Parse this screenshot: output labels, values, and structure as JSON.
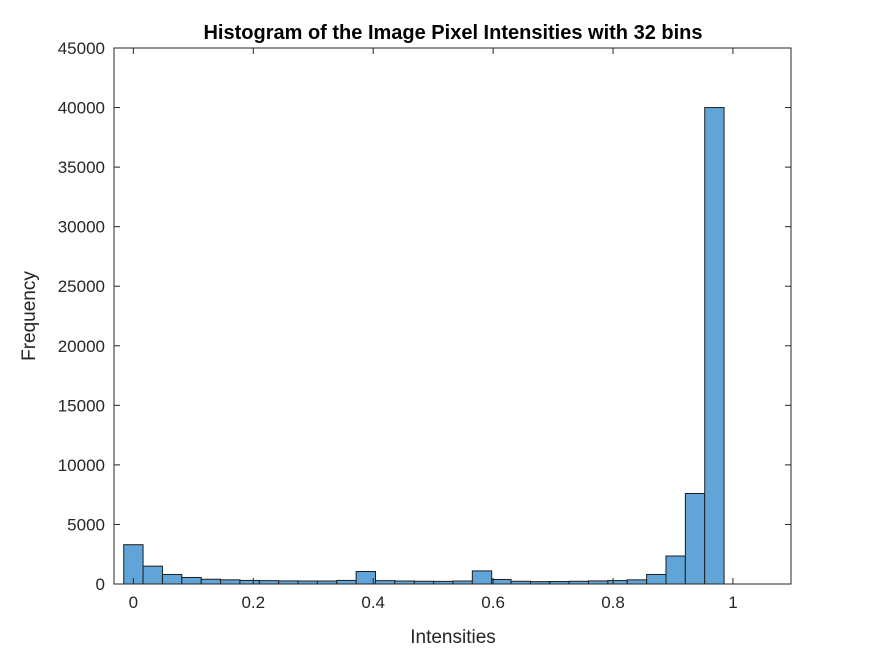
{
  "chart_data": {
    "type": "bar",
    "title": "Histogram of the Image Pixel Intensities with 32 bins",
    "xlabel": "Intensities",
    "ylabel": "Frequency",
    "xlim": [
      -0.0323,
      1.0968
    ],
    "ylim": [
      0,
      45000
    ],
    "xticks": [
      0,
      0.2,
      0.4,
      0.6,
      0.8,
      1
    ],
    "xtick_labels": [
      "0",
      "0.2",
      "0.4",
      "0.6",
      "0.8",
      "1"
    ],
    "yticks": [
      0,
      5000,
      10000,
      15000,
      20000,
      25000,
      30000,
      35000,
      40000,
      45000
    ],
    "ytick_labels": [
      "0",
      "5000",
      "10000",
      "15000",
      "20000",
      "25000",
      "30000",
      "35000",
      "40000",
      "45000"
    ],
    "bins": 32,
    "bin_edges_start": -0.0161,
    "bin_width": 0.0323,
    "values": [
      3300,
      1500,
      800,
      550,
      400,
      350,
      300,
      280,
      260,
      250,
      250,
      300,
      1050,
      280,
      250,
      230,
      220,
      250,
      1100,
      380,
      230,
      200,
      210,
      230,
      260,
      290,
      350,
      800,
      2350,
      7600,
      40000,
      0
    ],
    "bar_color": "#61A5D8",
    "edge_color": "#1F1F1F",
    "grid": false,
    "box": true
  }
}
